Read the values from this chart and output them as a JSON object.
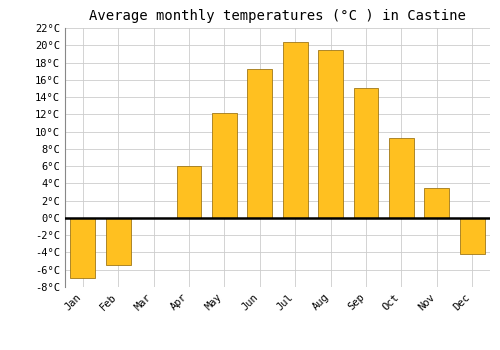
{
  "title": "Average monthly temperatures (°C ) in Castine",
  "months": [
    "Jan",
    "Feb",
    "Mar",
    "Apr",
    "May",
    "Jun",
    "Jul",
    "Aug",
    "Sep",
    "Oct",
    "Nov",
    "Dec"
  ],
  "values": [
    -7.0,
    -5.5,
    0.0,
    6.0,
    12.2,
    17.3,
    20.4,
    19.5,
    15.1,
    9.3,
    3.5,
    -4.2
  ],
  "bar_color": "#FFC020",
  "bar_edge_color": "#A07818",
  "ylim": [
    -8,
    22
  ],
  "yticks": [
    -8,
    -6,
    -4,
    -2,
    0,
    2,
    4,
    6,
    8,
    10,
    12,
    14,
    16,
    18,
    20,
    22
  ],
  "background_color": "#FFFFFF",
  "grid_color": "#CCCCCC",
  "zero_line_color": "#000000",
  "title_fontsize": 10,
  "tick_fontsize": 7.5,
  "font_family": "monospace"
}
